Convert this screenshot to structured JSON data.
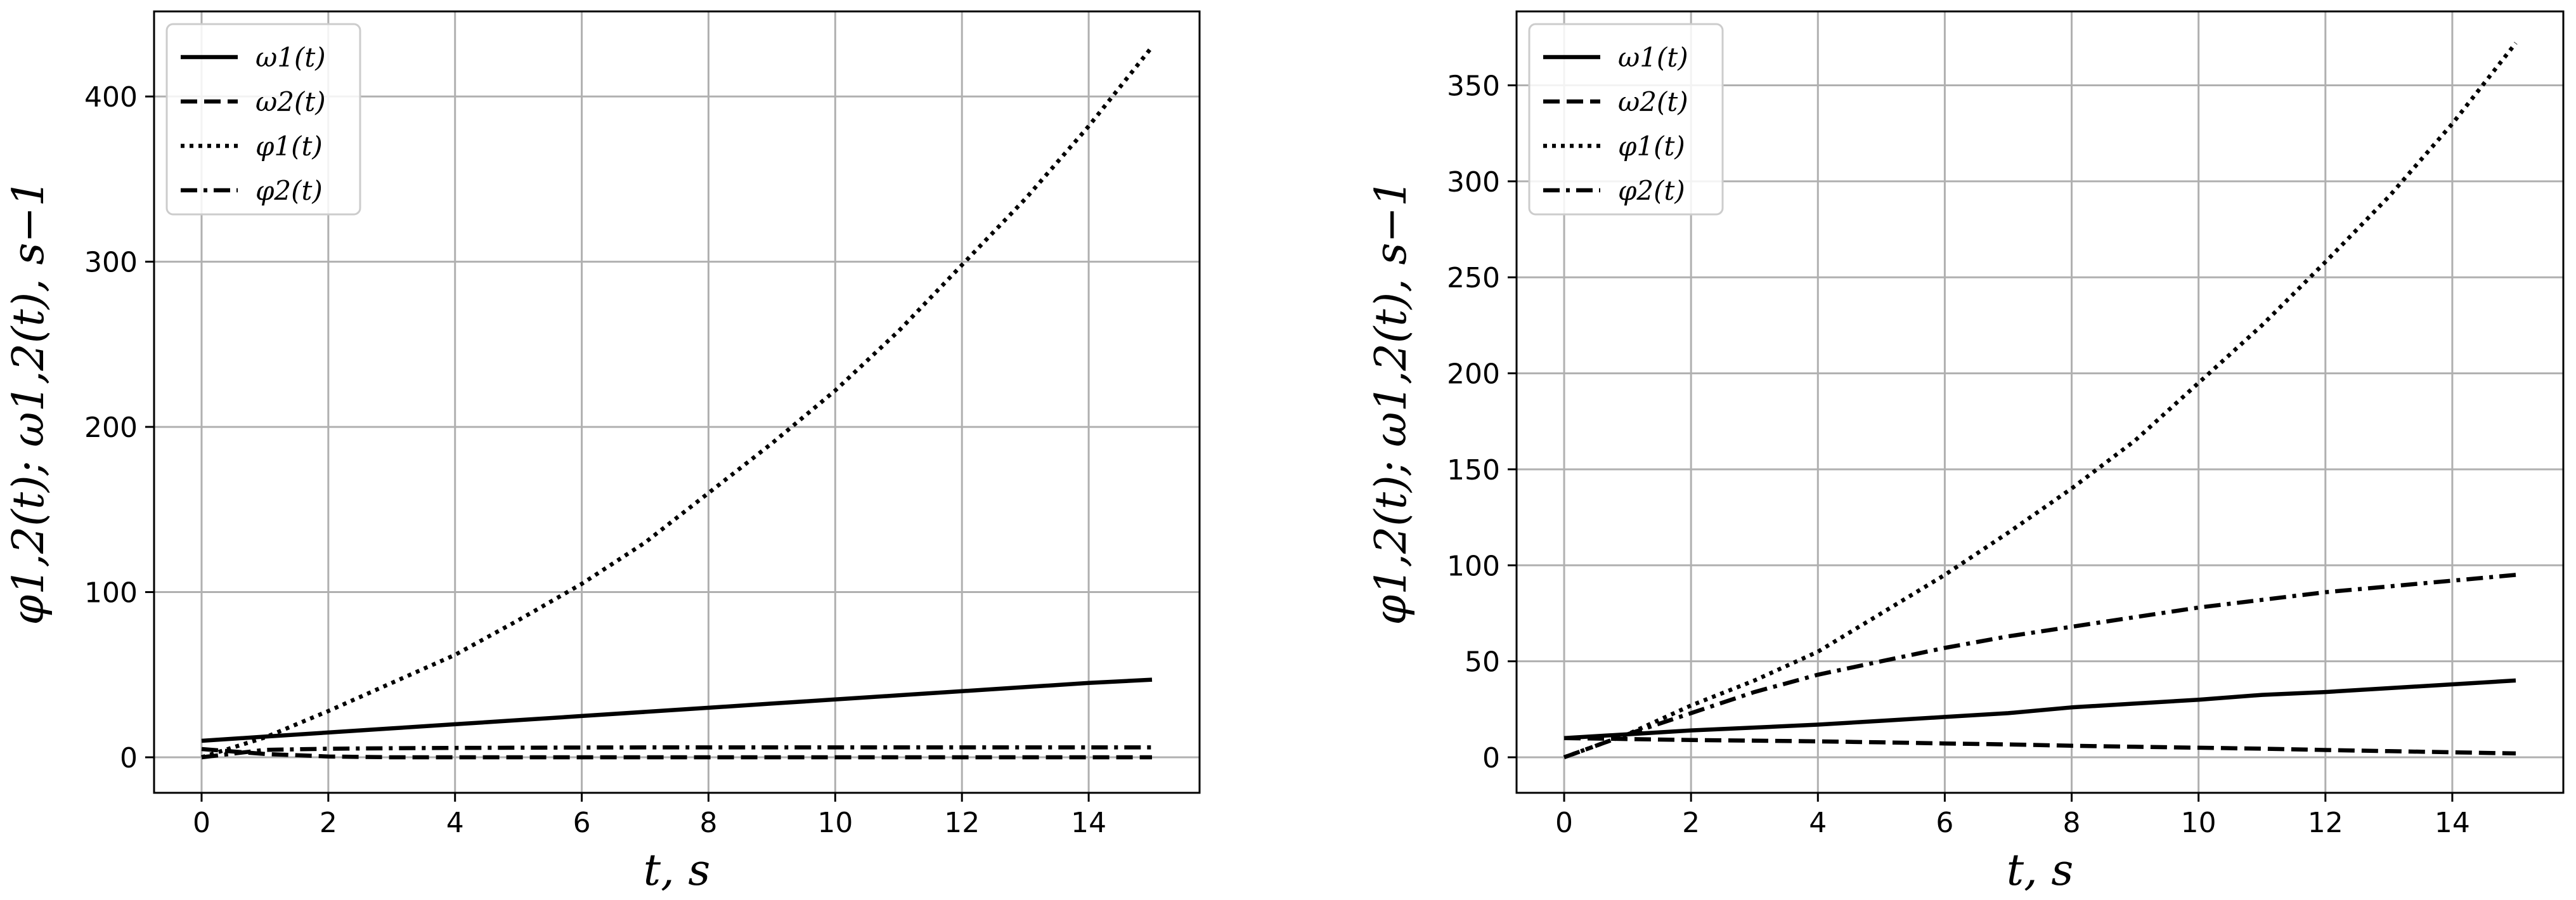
{
  "chart_data": [
    {
      "type": "line",
      "xlabel": "t, s",
      "ylabel": "φ1,2(t);  ω1,2(t), s−1",
      "xlim": [
        -0.75,
        15.75
      ],
      "ylim": [
        -21.5,
        451.5
      ],
      "xticks": [
        0,
        2,
        4,
        6,
        8,
        10,
        12,
        14
      ],
      "yticks": [
        0,
        100,
        200,
        300,
        400
      ],
      "grid": true,
      "legend_position": "top-left",
      "x": [
        0,
        1,
        2,
        3,
        4,
        5,
        6,
        7,
        8,
        9,
        10,
        11,
        12,
        13,
        14,
        15
      ],
      "series": [
        {
          "name": "ω1(t)",
          "style": "solid",
          "values": [
            10,
            12.5,
            15,
            17.5,
            20,
            22.5,
            25,
            27.5,
            30,
            32.5,
            35,
            37.5,
            40,
            42.5,
            45,
            47
          ]
        },
        {
          "name": "ω2(t)",
          "style": "dashed",
          "values": [
            5,
            2,
            0.5,
            0,
            0,
            0,
            0,
            0,
            0,
            0,
            0,
            0,
            0,
            0,
            0,
            0
          ]
        },
        {
          "name": "φ1(t)",
          "style": "dotted",
          "values": [
            0,
            12,
            28,
            45,
            62,
            83,
            105,
            130,
            160,
            190,
            222,
            258,
            298,
            338,
            382,
            430
          ]
        },
        {
          "name": "φ2(t)",
          "style": "dashdot",
          "values": [
            0,
            4.5,
            5.2,
            5.5,
            5.7,
            5.8,
            5.9,
            6,
            6,
            6,
            6,
            6,
            6,
            6,
            6,
            6
          ]
        }
      ]
    },
    {
      "type": "line",
      "xlabel": "t, s",
      "ylabel": "φ1,2(t);  ω1,2(t), s−1",
      "xlim": [
        -0.75,
        15.75
      ],
      "ylim": [
        -18.5,
        388.5
      ],
      "xticks": [
        0,
        2,
        4,
        6,
        8,
        10,
        12,
        14
      ],
      "yticks": [
        0,
        50,
        100,
        150,
        200,
        250,
        300,
        350
      ],
      "grid": true,
      "legend_position": "top-left",
      "x": [
        0,
        1,
        2,
        3,
        4,
        5,
        6,
        7,
        8,
        9,
        10,
        11,
        12,
        13,
        14,
        15
      ],
      "series": [
        {
          "name": "ω1(t)",
          "style": "solid",
          "values": [
            10,
            12,
            14,
            15.5,
            17,
            19,
            21,
            23,
            26,
            28,
            30,
            32.5,
            34,
            36,
            38,
            40
          ]
        },
        {
          "name": "ω2(t)",
          "style": "dashed",
          "values": [
            10,
            9.5,
            9,
            8.7,
            8.3,
            7.8,
            7.2,
            6.7,
            6,
            5.5,
            5,
            4.5,
            3.8,
            3.2,
            2.6,
            2
          ]
        },
        {
          "name": "φ1(t)",
          "style": "dotted",
          "values": [
            0,
            12,
            27,
            40,
            55,
            75,
            95,
            117,
            140,
            165,
            195,
            225,
            258,
            292,
            330,
            372
          ]
        },
        {
          "name": "φ2(t)",
          "style": "dashdot",
          "values": [
            0,
            12,
            23,
            34,
            43,
            50,
            57,
            63,
            68,
            73,
            78,
            82,
            86,
            89,
            92,
            95
          ]
        }
      ]
    }
  ]
}
